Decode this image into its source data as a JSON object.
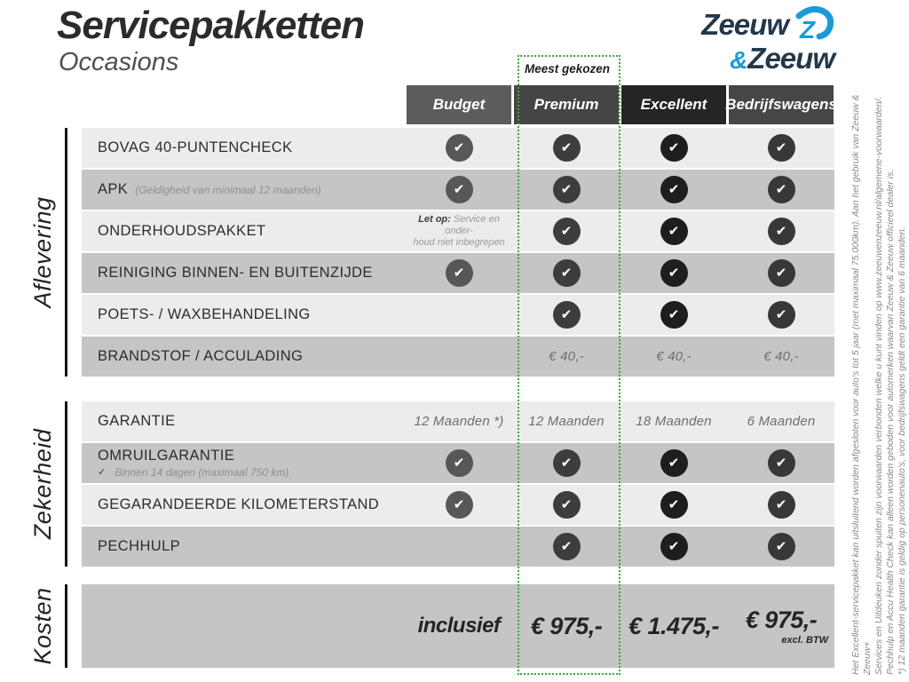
{
  "header": {
    "title": "Servicepakketten",
    "subtitle": "Occasions"
  },
  "logo": {
    "word1": "Zeeuw",
    "amp": "&",
    "word2": "Zeeuw",
    "dark": "#24384a",
    "blue": "#1a9bd7"
  },
  "table": {
    "highlight_label": "Meest gekozen",
    "highlight_color": "#3aaa35",
    "check_glyph": "✔",
    "row_light_bg": "#ececec",
    "row_medium_bg": "#c5c5c5",
    "columns": [
      {
        "label": "Budget",
        "header_bg": "#5c5c5c",
        "check_bg": "#575757"
      },
      {
        "label": "Premium",
        "header_bg": "#454545",
        "check_bg": "#3d3d3d",
        "highlighted": true
      },
      {
        "label": "Excellent",
        "header_bg": "#252525",
        "check_bg": "#1e1e1e"
      },
      {
        "label": "Bedrijfswagens",
        "header_bg": "#464646",
        "check_bg": "#383838"
      }
    ],
    "sections": [
      {
        "label": "Aflevering",
        "rows": [
          {
            "label": "BOVAG 40-PUNTENCHECK",
            "cells": [
              {
                "type": "check"
              },
              {
                "type": "check"
              },
              {
                "type": "check"
              },
              {
                "type": "check"
              }
            ]
          },
          {
            "label": "APK",
            "inline_note": "(Geldigheid van minimaal 12 maanden)",
            "cells": [
              {
                "type": "check"
              },
              {
                "type": "check"
              },
              {
                "type": "check"
              },
              {
                "type": "check"
              }
            ]
          },
          {
            "label": "ONDERHOUDSPAKKET",
            "cells": [
              {
                "type": "note",
                "bold": "Let op:",
                "lines": [
                  "Service en onder-",
                  "houd niet inbegrepen"
                ]
              },
              {
                "type": "check"
              },
              {
                "type": "check"
              },
              {
                "type": "check"
              }
            ]
          },
          {
            "label": "REINIGING BINNEN- EN BUITENZIJDE",
            "cells": [
              {
                "type": "check"
              },
              {
                "type": "check"
              },
              {
                "type": "check"
              },
              {
                "type": "check"
              }
            ]
          },
          {
            "label": "POETS- / WAXBEHANDELING",
            "cells": [
              {
                "type": "empty"
              },
              {
                "type": "check"
              },
              {
                "type": "check"
              },
              {
                "type": "check"
              }
            ]
          },
          {
            "label": "BRANDSTOF / ACCULADING",
            "cells": [
              {
                "type": "empty"
              },
              {
                "type": "text",
                "value": "€ 40,-"
              },
              {
                "type": "text",
                "value": "€ 40,-"
              },
              {
                "type": "text",
                "value": "€ 40,-"
              }
            ]
          }
        ]
      },
      {
        "label": "Zekerheid",
        "rows": [
          {
            "label": "GARANTIE",
            "cells": [
              {
                "type": "text",
                "value": "12 Maanden *)"
              },
              {
                "type": "text",
                "value": "12 Maanden"
              },
              {
                "type": "text",
                "value": "18 Maanden"
              },
              {
                "type": "text",
                "value": "6 Maanden"
              }
            ]
          },
          {
            "label": "OMRUILGARANTIE",
            "subnote": {
              "check": "✓",
              "text": "Binnen 14 dagen (maximaal 750 km)"
            },
            "cells": [
              {
                "type": "check"
              },
              {
                "type": "check"
              },
              {
                "type": "check"
              },
              {
                "type": "check"
              }
            ]
          },
          {
            "label": "GEGARANDEERDE KILOMETERSTAND",
            "cells": [
              {
                "type": "check"
              },
              {
                "type": "check"
              },
              {
                "type": "check"
              },
              {
                "type": "check"
              }
            ]
          },
          {
            "label": "PECHHULP",
            "cells": [
              {
                "type": "empty"
              },
              {
                "type": "check"
              },
              {
                "type": "check"
              },
              {
                "type": "check"
              }
            ]
          }
        ]
      }
    ],
    "kosten": {
      "label": "Kosten",
      "cells": [
        {
          "type": "price",
          "value": "inclusief",
          "variant": "label"
        },
        {
          "type": "price",
          "value": "€ 975,-"
        },
        {
          "type": "price",
          "value": "€ 1.475,-"
        },
        {
          "type": "price",
          "value": "€ 975,-",
          "sub": "excl. BTW"
        }
      ]
    }
  },
  "disclaimer": {
    "lines": [
      "Het Excellent-servicepakket kan uitsluitend worden afgesloten voor auto's tot 5 jaar (met maximaal 75.000km). Aan het gebruik van Zeeuw & Zeeuw+",
      "Services en Uitdeuken zonder spuiten zijn voorwaarden verbonden welke u kunt vinden op www.zeeuwenzeeuw.nl/algemene-voorwaarden/.",
      "Pechhulp en Accu Health Check kan alleen worden geboden voor automerken waarvan Zeeuw & Zeeuw officieel dealer is.",
      "*) 12 maanden garantie is geldig op personenauto's, voor bedrijfswagens geldt een garantie van 6 maanden."
    ]
  }
}
